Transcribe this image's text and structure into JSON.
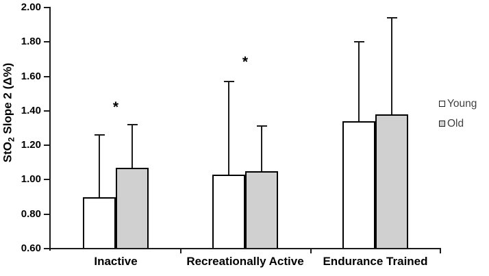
{
  "chart_data": {
    "type": "bar",
    "categories": [
      "Inactive",
      "Recreationally Active",
      "Endurance Trained"
    ],
    "series": [
      {
        "name": "Young",
        "fill": "#FFFFFF",
        "values": [
          0.9,
          1.03,
          1.34
        ],
        "error_upper": [
          1.26,
          1.57,
          1.8
        ]
      },
      {
        "name": "Old",
        "fill": "#D0D0D0",
        "values": [
          1.07,
          1.05,
          1.38
        ],
        "error_upper": [
          1.32,
          1.31,
          1.94
        ]
      }
    ],
    "ylabel": {
      "prefix": "StO",
      "sub": "2",
      "suffix": " Slope 2 (Δ%)"
    },
    "ylim": [
      0.6,
      2.0
    ],
    "ytick_step": 0.2,
    "ytick_labels": [
      "0.60",
      "0.80",
      "1.00",
      "1.20",
      "1.40",
      "1.60",
      "1.80",
      "2.00"
    ],
    "grid": false,
    "legend_position": "right",
    "annotations": [
      {
        "text": "*",
        "category_index": 0,
        "y": 1.42
      },
      {
        "text": "*",
        "category_index": 1,
        "y": 1.68
      }
    ],
    "colors": {
      "bar_border": "#000000",
      "axis": "#1A1A1A",
      "tick_label": "#000000",
      "legend_text": "#3F3F3F"
    }
  }
}
